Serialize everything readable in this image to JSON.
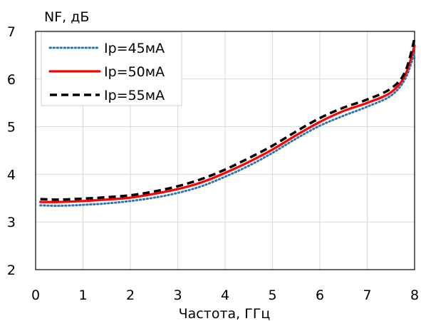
{
  "chart_data": {
    "type": "line",
    "title": "",
    "ylabel": "NF, дБ",
    "xlabel": "Частота, ГГц",
    "xlim": [
      0,
      8
    ],
    "ylim": [
      2,
      7
    ],
    "xticks": [
      "0",
      "1",
      "2",
      "3",
      "4",
      "5",
      "6",
      "7",
      "8"
    ],
    "yticks": [
      "2",
      "3",
      "4",
      "5",
      "6",
      "7"
    ],
    "grid": true,
    "legend_position": "top-left",
    "series": [
      {
        "name": "Ip=45мА",
        "color": "#2E75B6",
        "style": "dotted",
        "x": [
          0.1,
          0.5,
          1,
          1.5,
          2,
          2.5,
          3,
          3.5,
          4,
          4.5,
          5,
          5.5,
          6,
          6.5,
          7,
          7.5,
          7.8,
          8
        ],
        "y": [
          3.35,
          3.34,
          3.36,
          3.39,
          3.44,
          3.51,
          3.61,
          3.75,
          3.95,
          4.18,
          4.45,
          4.75,
          5.02,
          5.23,
          5.42,
          5.65,
          6.0,
          6.55
        ]
      },
      {
        "name": "Ip=50мА",
        "color": "#FF0000",
        "style": "solid",
        "x": [
          0.1,
          0.5,
          1,
          1.5,
          2,
          2.5,
          3,
          3.5,
          4,
          4.5,
          5,
          5.5,
          6,
          6.5,
          7,
          7.5,
          7.8,
          8
        ],
        "y": [
          3.42,
          3.42,
          3.44,
          3.47,
          3.51,
          3.59,
          3.69,
          3.83,
          4.03,
          4.26,
          4.52,
          4.82,
          5.1,
          5.33,
          5.5,
          5.72,
          6.08,
          6.7
        ]
      },
      {
        "name": "Ip=55мА",
        "color": "#000000",
        "style": "dashed",
        "x": [
          0.1,
          0.5,
          1,
          1.5,
          2,
          2.5,
          3,
          3.5,
          4,
          4.5,
          5,
          5.5,
          6,
          6.5,
          7,
          7.5,
          7.8,
          8
        ],
        "y": [
          3.48,
          3.47,
          3.49,
          3.52,
          3.56,
          3.64,
          3.75,
          3.9,
          4.1,
          4.34,
          4.6,
          4.9,
          5.18,
          5.4,
          5.57,
          5.8,
          6.15,
          6.85
        ]
      }
    ]
  }
}
